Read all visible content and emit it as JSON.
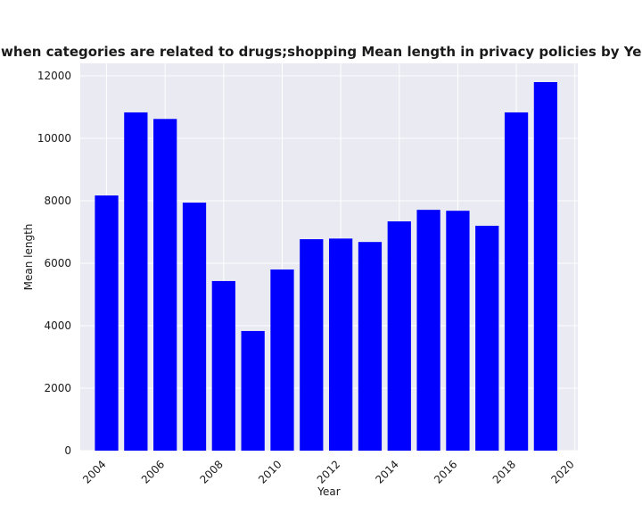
{
  "chart_data": {
    "type": "bar",
    "title": "when categories are related to drugs;shopping Mean length in privacy policies by Year",
    "xlabel": "Year",
    "ylabel": "Mean length",
    "x": [
      2004,
      2005,
      2006,
      2007,
      2008,
      2009,
      2010,
      2011,
      2012,
      2013,
      2014,
      2015,
      2016,
      2017,
      2018,
      2019
    ],
    "values": [
      8170,
      10830,
      10620,
      7940,
      5430,
      3830,
      5800,
      6770,
      6790,
      6680,
      7340,
      7710,
      7680,
      7200,
      10830,
      11800
    ],
    "xlim": [
      2003.1,
      2020.1
    ],
    "ylim": [
      0,
      12400
    ],
    "xticks": [
      "2004",
      "2006",
      "2008",
      "2010",
      "2012",
      "2014",
      "2016",
      "2018",
      "2020"
    ],
    "yticks": [
      "0",
      "2000",
      "4000",
      "6000",
      "8000",
      "10000",
      "12000"
    ],
    "grid": true,
    "bar_color": "#0000ff",
    "plot_background": "#eaeaf2",
    "grid_color": "#ffffff"
  }
}
